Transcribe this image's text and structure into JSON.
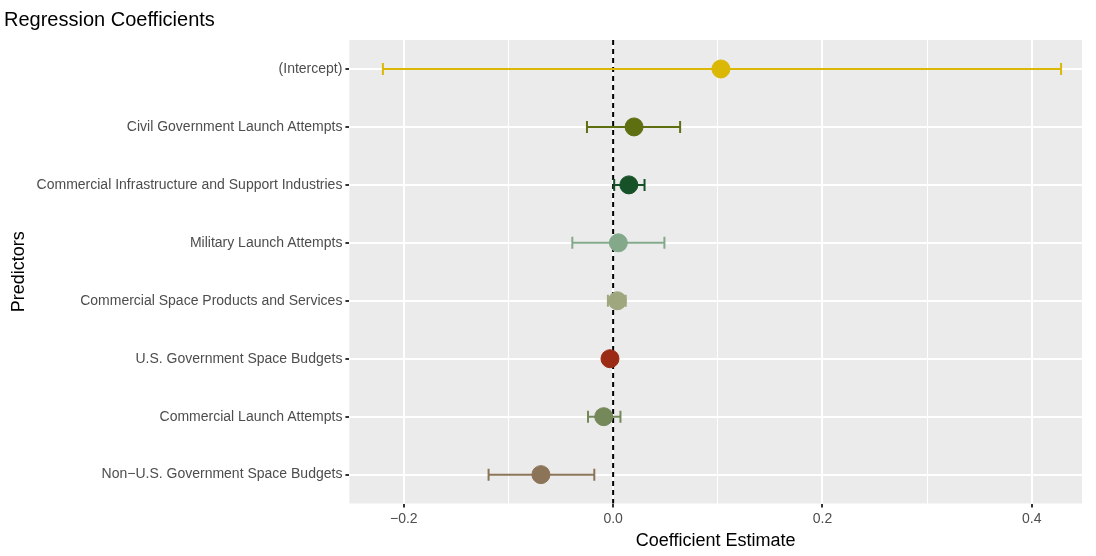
{
  "chart_data": {
    "type": "scatter",
    "orientation": "horizontal",
    "title": "Regression Coefficients",
    "xlabel": "Coefficient Estimate",
    "ylabel": "Predictors",
    "categories": [
      "(Intercept)",
      "Civil Government Launch Attempts",
      "Commercial Infrastructure and Support Industries",
      "Military Launch Attempts",
      "Commercial Space Products and Services",
      "U.S. Government Space Budgets",
      "Commercial Launch Attempts",
      "Non−U.S. Government Space Budgets"
    ],
    "values": [
      0.103,
      0.02,
      0.015,
      0.005,
      0.004,
      -0.003,
      -0.009,
      -0.069
    ],
    "errors": [
      [
        -0.22,
        0.428
      ],
      [
        -0.025,
        0.064
      ],
      [
        0.001,
        0.03
      ],
      [
        -0.039,
        0.049
      ],
      [
        -0.005,
        0.012
      ],
      null,
      [
        -0.024,
        0.007
      ],
      [
        -0.119,
        -0.018
      ]
    ],
    "colors": [
      "#dbb706",
      "#5d6f10",
      "#165127",
      "#83a98a",
      "#9ea77e",
      "#9b2b14",
      "#74885a",
      "#8c7458"
    ],
    "xlim": [
      -0.252,
      0.448
    ],
    "xticks": [
      {
        "value": -0.2,
        "label": "−0.2"
      },
      {
        "value": -0.1,
        "label": null
      },
      {
        "value": 0,
        "label": "0.0"
      },
      {
        "value": 0.1,
        "label": null
      },
      {
        "value": 0.2,
        "label": "0.2"
      },
      {
        "value": 0.3,
        "label": null
      },
      {
        "value": 0.4,
        "label": "0.4"
      }
    ],
    "ref_lines": [
      {
        "axis": "x",
        "value": 0,
        "color": "#000000",
        "line_style": "dashed"
      }
    ],
    "grid": true,
    "legend": false,
    "marker": "circle"
  }
}
